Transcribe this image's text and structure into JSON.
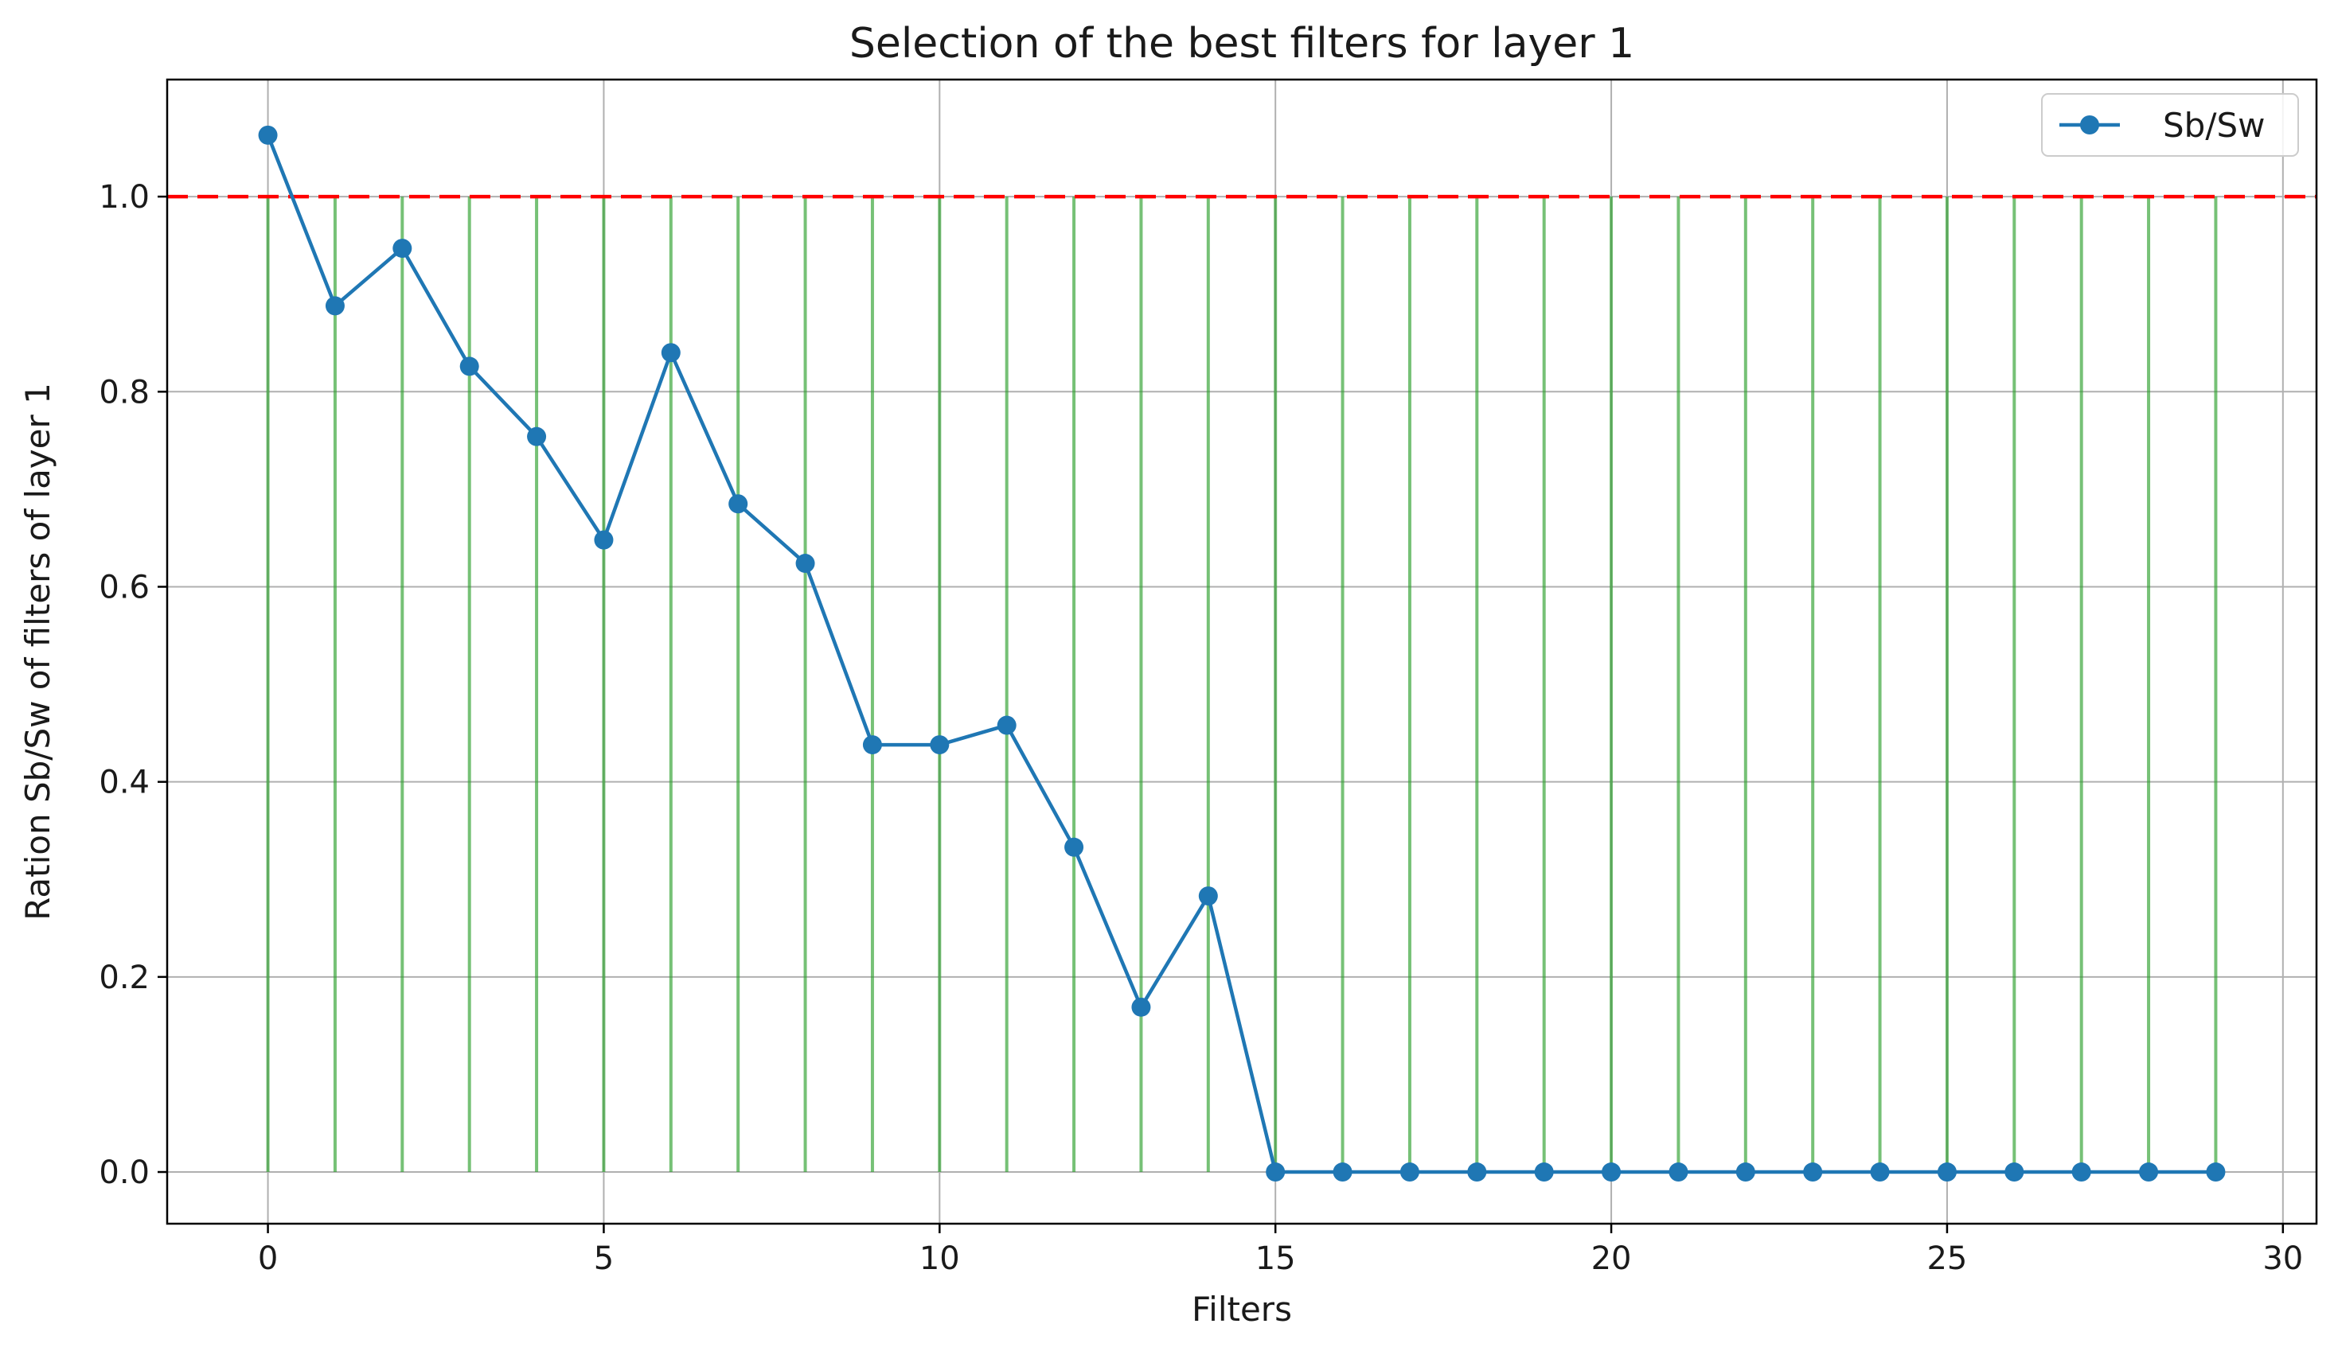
{
  "chart_data": {
    "type": "line",
    "title": "Selection of the best filters for layer 1",
    "xlabel": "Filters",
    "ylabel": "Ration Sb/Sw of filters of layer 1",
    "xlim": [
      -1.5,
      30.5
    ],
    "ylim": [
      -0.053,
      1.12
    ],
    "xticks": [
      0,
      5,
      10,
      15,
      20,
      25,
      30
    ],
    "yticks": [
      0.0,
      0.2,
      0.4,
      0.6,
      0.8,
      1.0
    ],
    "xtick_labels": [
      "0",
      "5",
      "10",
      "15",
      "20",
      "25",
      "30"
    ],
    "ytick_labels": [
      "0.0",
      "0.2",
      "0.4",
      "0.6",
      "0.8",
      "1.0"
    ],
    "grid": true,
    "legend_position": "top-right",
    "threshold": {
      "y": 1.0,
      "color": "#ff0000",
      "style": "dashed"
    },
    "stems": {
      "color": "#2ca02c",
      "from": 0.0,
      "to": 1.0
    },
    "series": [
      {
        "name": "Sb/Sw",
        "color": "#1f77b4",
        "marker": "circle",
        "x": [
          0,
          1,
          2,
          3,
          4,
          5,
          6,
          7,
          8,
          9,
          10,
          11,
          12,
          13,
          14,
          15,
          16,
          17,
          18,
          19,
          20,
          21,
          22,
          23,
          24,
          25,
          26,
          27,
          28,
          29
        ],
        "values": [
          1.063,
          0.888,
          0.947,
          0.826,
          0.754,
          0.648,
          0.84,
          0.685,
          0.624,
          0.438,
          0.438,
          0.458,
          0.333,
          0.169,
          0.283,
          0,
          0,
          0,
          0,
          0,
          0,
          0,
          0,
          0,
          0,
          0,
          0,
          0,
          0,
          0
        ]
      }
    ]
  }
}
